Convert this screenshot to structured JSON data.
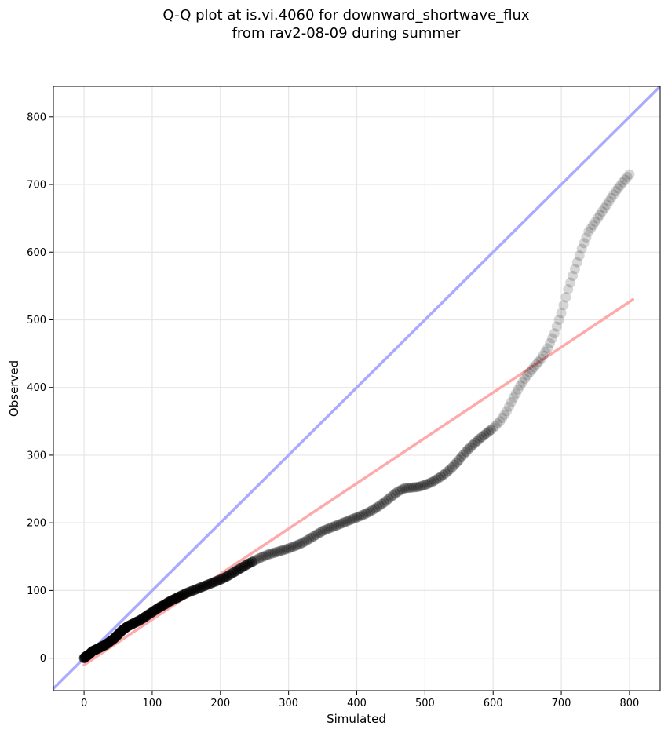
{
  "chart_data": {
    "type": "scatter",
    "title_lines": [
      "Q-Q plot at is.vi.4060 for downward_shortwave_flux",
      "from rav2-08-09 during summer"
    ],
    "xlabel": "Simulated",
    "ylabel": "Observed",
    "xlim": [
      -45,
      845
    ],
    "ylim": [
      -48,
      845
    ],
    "xticks": [
      0,
      100,
      200,
      300,
      400,
      500,
      600,
      700,
      800
    ],
    "yticks": [
      0,
      100,
      200,
      300,
      400,
      500,
      600,
      700,
      800
    ],
    "grid": true,
    "series": [
      {
        "marker_color": "#000000",
        "quantiles": [
          [
            0,
            0
          ],
          [
            2,
            2
          ],
          [
            5,
            4
          ],
          [
            8,
            6
          ],
          [
            12,
            10
          ],
          [
            16,
            12
          ],
          [
            20,
            14
          ],
          [
            24,
            16
          ],
          [
            28,
            18
          ],
          [
            32,
            20
          ],
          [
            36,
            23
          ],
          [
            40,
            26
          ],
          [
            44,
            29
          ],
          [
            48,
            33
          ],
          [
            52,
            37
          ],
          [
            56,
            41
          ],
          [
            60,
            44
          ],
          [
            64,
            47
          ],
          [
            70,
            50
          ],
          [
            76,
            53
          ],
          [
            82,
            56
          ],
          [
            88,
            60
          ],
          [
            94,
            64
          ],
          [
            100,
            68
          ],
          [
            106,
            72
          ],
          [
            112,
            76
          ],
          [
            118,
            79
          ],
          [
            124,
            83
          ],
          [
            130,
            86
          ],
          [
            136,
            89
          ],
          [
            142,
            92
          ],
          [
            150,
            96
          ],
          [
            160,
            100
          ],
          [
            170,
            104
          ],
          [
            180,
            108
          ],
          [
            190,
            112
          ],
          [
            200,
            116
          ],
          [
            210,
            121
          ],
          [
            220,
            127
          ],
          [
            230,
            133
          ],
          [
            240,
            139
          ],
          [
            250,
            144
          ],
          [
            260,
            149
          ],
          [
            270,
            153
          ],
          [
            280,
            156
          ],
          [
            290,
            159
          ],
          [
            300,
            162
          ],
          [
            310,
            166
          ],
          [
            320,
            170
          ],
          [
            330,
            176
          ],
          [
            340,
            182
          ],
          [
            350,
            188
          ],
          [
            360,
            192
          ],
          [
            370,
            196
          ],
          [
            380,
            200
          ],
          [
            390,
            204
          ],
          [
            400,
            208
          ],
          [
            410,
            212
          ],
          [
            420,
            217
          ],
          [
            430,
            223
          ],
          [
            440,
            230
          ],
          [
            450,
            238
          ],
          [
            460,
            246
          ],
          [
            470,
            251
          ],
          [
            480,
            252
          ],
          [
            490,
            253
          ],
          [
            500,
            256
          ],
          [
            510,
            260
          ],
          [
            520,
            266
          ],
          [
            530,
            273
          ],
          [
            540,
            282
          ],
          [
            550,
            293
          ],
          [
            560,
            305
          ],
          [
            570,
            315
          ],
          [
            580,
            324
          ],
          [
            590,
            332
          ],
          [
            600,
            340
          ],
          [
            610,
            350
          ],
          [
            620,
            365
          ],
          [
            630,
            385
          ],
          [
            640,
            403
          ],
          [
            650,
            418
          ],
          [
            660,
            430
          ],
          [
            670,
            442
          ],
          [
            680,
            458
          ],
          [
            690,
            480
          ],
          [
            700,
            510
          ],
          [
            710,
            545
          ],
          [
            720,
            575
          ],
          [
            730,
            605
          ],
          [
            740,
            630
          ],
          [
            750,
            645
          ],
          [
            760,
            660
          ],
          [
            770,
            675
          ],
          [
            780,
            690
          ],
          [
            790,
            703
          ],
          [
            800,
            715
          ]
        ]
      }
    ],
    "reference_lines": [
      {
        "kind": "one-to-one",
        "color": "#aaaaff",
        "points": [
          [
            -45,
            -45
          ],
          [
            845,
            845
          ]
        ]
      },
      {
        "kind": "fit",
        "color": "#ffaaaa",
        "points": [
          [
            0,
            -10
          ],
          [
            805,
            530
          ]
        ]
      }
    ]
  }
}
